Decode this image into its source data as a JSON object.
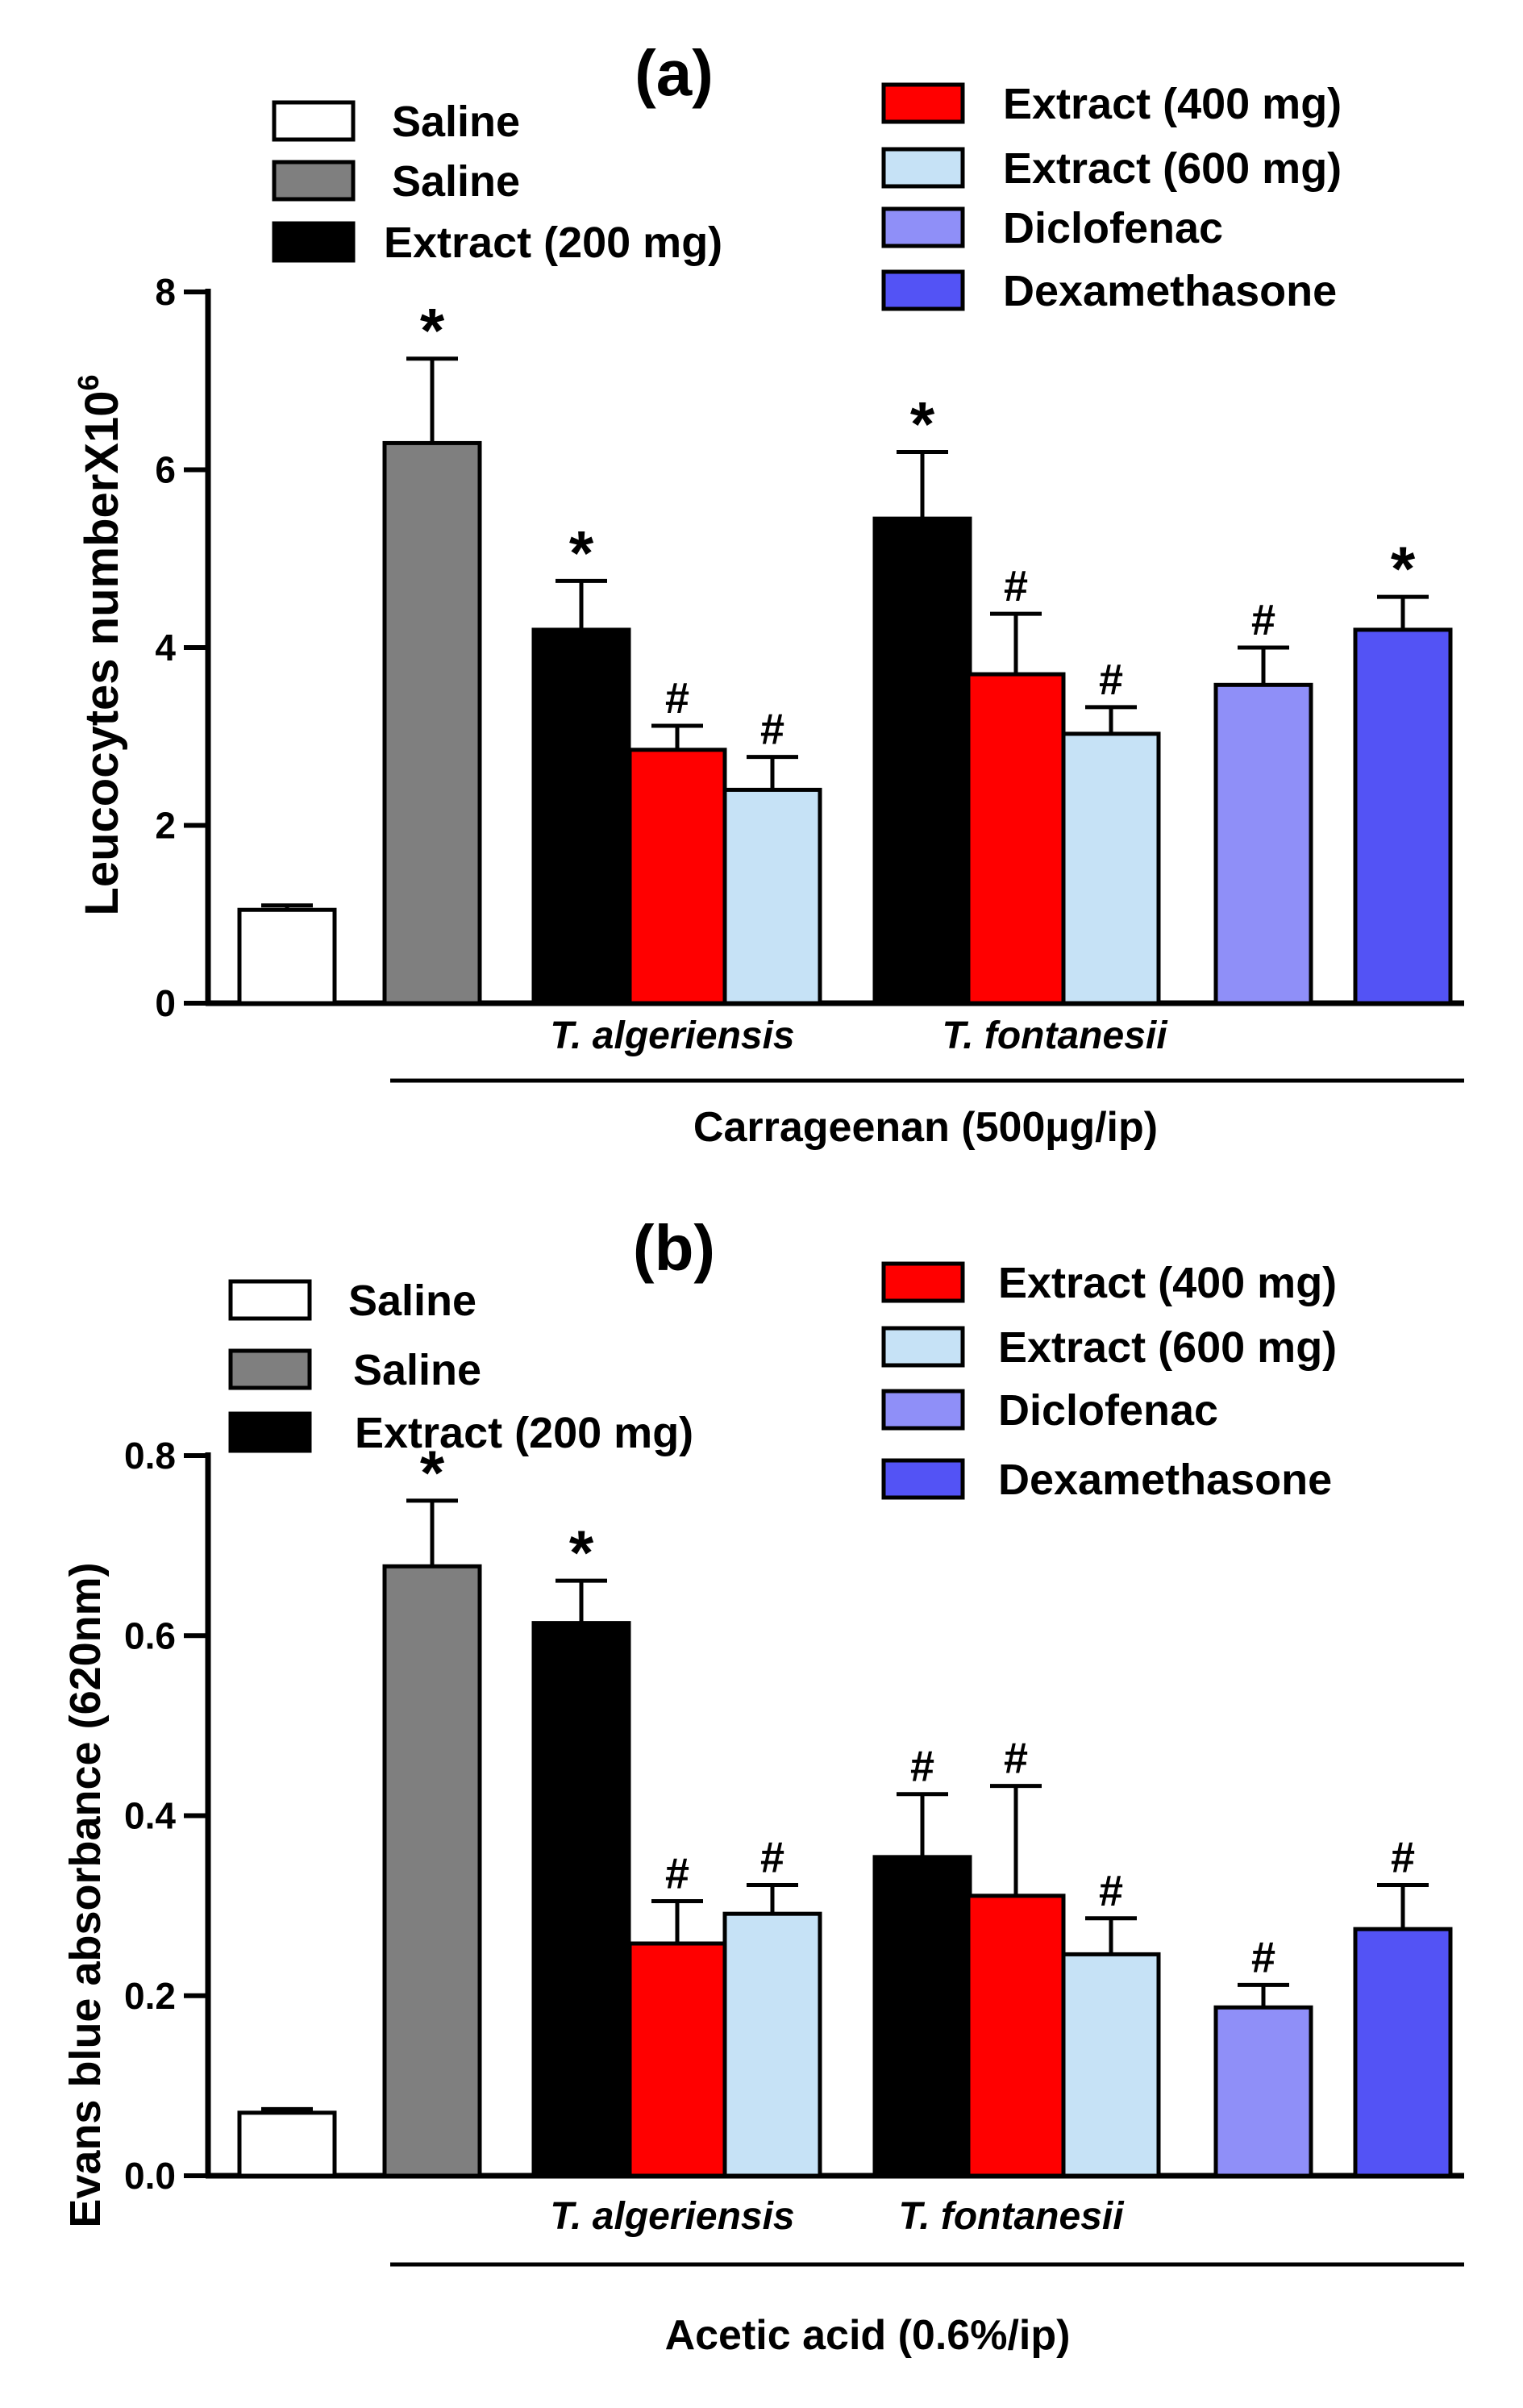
{
  "colors": {
    "saline_control": "#ffffff",
    "saline_inflamed": "#7f7f7f",
    "extract_200": "#000000",
    "extract_400": "#ff0000",
    "extract_600": "#c6e2f6",
    "diclofenac": "#8f8ff8",
    "dexamethasone": "#5353f5"
  },
  "chart_data": [
    {
      "panel": "(a)",
      "type": "bar",
      "ylabel": "Leucocytes numberX10",
      "ylabel_superscript": "6",
      "ylim": [
        0,
        8
      ],
      "yticks": [
        "0",
        "2",
        "4",
        "6",
        "8"
      ],
      "group_labels": [
        "T. algeriensis",
        "T. fontanesii"
      ],
      "treatment_label": "Carrageenan (500µg/ip)",
      "legend": [
        "Saline",
        "Saline",
        "Extract (200 mg)",
        "Extract (400 mg)",
        "Extract (600 mg)",
        "Diclofenac",
        "Dexamethasone"
      ],
      "series": [
        {
          "name": "Saline",
          "color": "saline_control",
          "value": 1.05,
          "error": 0.05,
          "marker": ""
        },
        {
          "name": "Saline",
          "color": "saline_inflamed",
          "value": 6.3,
          "error": 0.95,
          "marker": "*"
        },
        {
          "name": "Extract (200 mg)",
          "group": "T. algeriensis",
          "color": "extract_200",
          "value": 4.2,
          "error": 0.55,
          "marker": "*"
        },
        {
          "name": "Extract (400 mg)",
          "group": "T. algeriensis",
          "color": "extract_400",
          "value": 2.85,
          "error": 0.27,
          "marker": "#"
        },
        {
          "name": "Extract (600 mg)",
          "group": "T. algeriensis",
          "color": "extract_600",
          "value": 2.4,
          "error": 0.37,
          "marker": "#"
        },
        {
          "name": "Extract (200 mg)",
          "group": "T. fontanesii",
          "color": "extract_200",
          "value": 5.45,
          "error": 0.75,
          "marker": "*"
        },
        {
          "name": "Extract (400 mg)",
          "group": "T. fontanesii",
          "color": "extract_400",
          "value": 3.7,
          "error": 0.68,
          "marker": "#"
        },
        {
          "name": "Extract (600 mg)",
          "group": "T. fontanesii",
          "color": "extract_600",
          "value": 3.03,
          "error": 0.3,
          "marker": "#"
        },
        {
          "name": "Diclofenac",
          "color": "diclofenac",
          "value": 3.58,
          "error": 0.42,
          "marker": "#"
        },
        {
          "name": "Dexamethasone",
          "color": "dexamethasone",
          "value": 4.2,
          "error": 0.37,
          "marker": "*"
        }
      ]
    },
    {
      "panel": "(b)",
      "type": "bar",
      "ylabel": "Evans blue absorbance (620nm)",
      "ylabel_superscript": "",
      "ylim": [
        0,
        0.8
      ],
      "yticks": [
        "0.0",
        "0.2",
        "0.4",
        "0.6",
        "0.8"
      ],
      "group_labels": [
        "T. algeriensis",
        "T. fontanesii"
      ],
      "treatment_label": "Acetic acid (0.6%/ip)",
      "legend": [
        "Saline",
        "Saline",
        "Extract (200 mg)",
        "Extract (400 mg)",
        "Extract (600 mg)",
        "Diclofenac",
        "Dexamethasone"
      ],
      "series": [
        {
          "name": "Saline",
          "color": "saline_control",
          "value": 0.07,
          "error": 0.004,
          "marker": ""
        },
        {
          "name": "Saline",
          "color": "saline_inflamed",
          "value": 0.677,
          "error": 0.073,
          "marker": "*"
        },
        {
          "name": "Extract (200 mg)",
          "group": "T. algeriensis",
          "color": "extract_200",
          "value": 0.614,
          "error": 0.047,
          "marker": "*"
        },
        {
          "name": "Extract (400 mg)",
          "group": "T. algeriensis",
          "color": "extract_400",
          "value": 0.258,
          "error": 0.047,
          "marker": "#"
        },
        {
          "name": "Extract (600 mg)",
          "group": "T. algeriensis",
          "color": "extract_600",
          "value": 0.291,
          "error": 0.032,
          "marker": "#"
        },
        {
          "name": "Extract (200 mg)",
          "group": "T. fontanesii",
          "color": "extract_200",
          "value": 0.354,
          "error": 0.07,
          "marker": "#"
        },
        {
          "name": "Extract (400 mg)",
          "group": "T. fontanesii",
          "color": "extract_400",
          "value": 0.311,
          "error": 0.122,
          "marker": "#"
        },
        {
          "name": "Extract (600 mg)",
          "group": "T. fontanesii",
          "color": "extract_600",
          "value": 0.246,
          "error": 0.04,
          "marker": "#"
        },
        {
          "name": "Diclofenac",
          "color": "diclofenac",
          "value": 0.187,
          "error": 0.025,
          "marker": "#"
        },
        {
          "name": "Dexamethasone",
          "color": "dexamethasone",
          "value": 0.274,
          "error": 0.049,
          "marker": "#"
        }
      ]
    }
  ]
}
